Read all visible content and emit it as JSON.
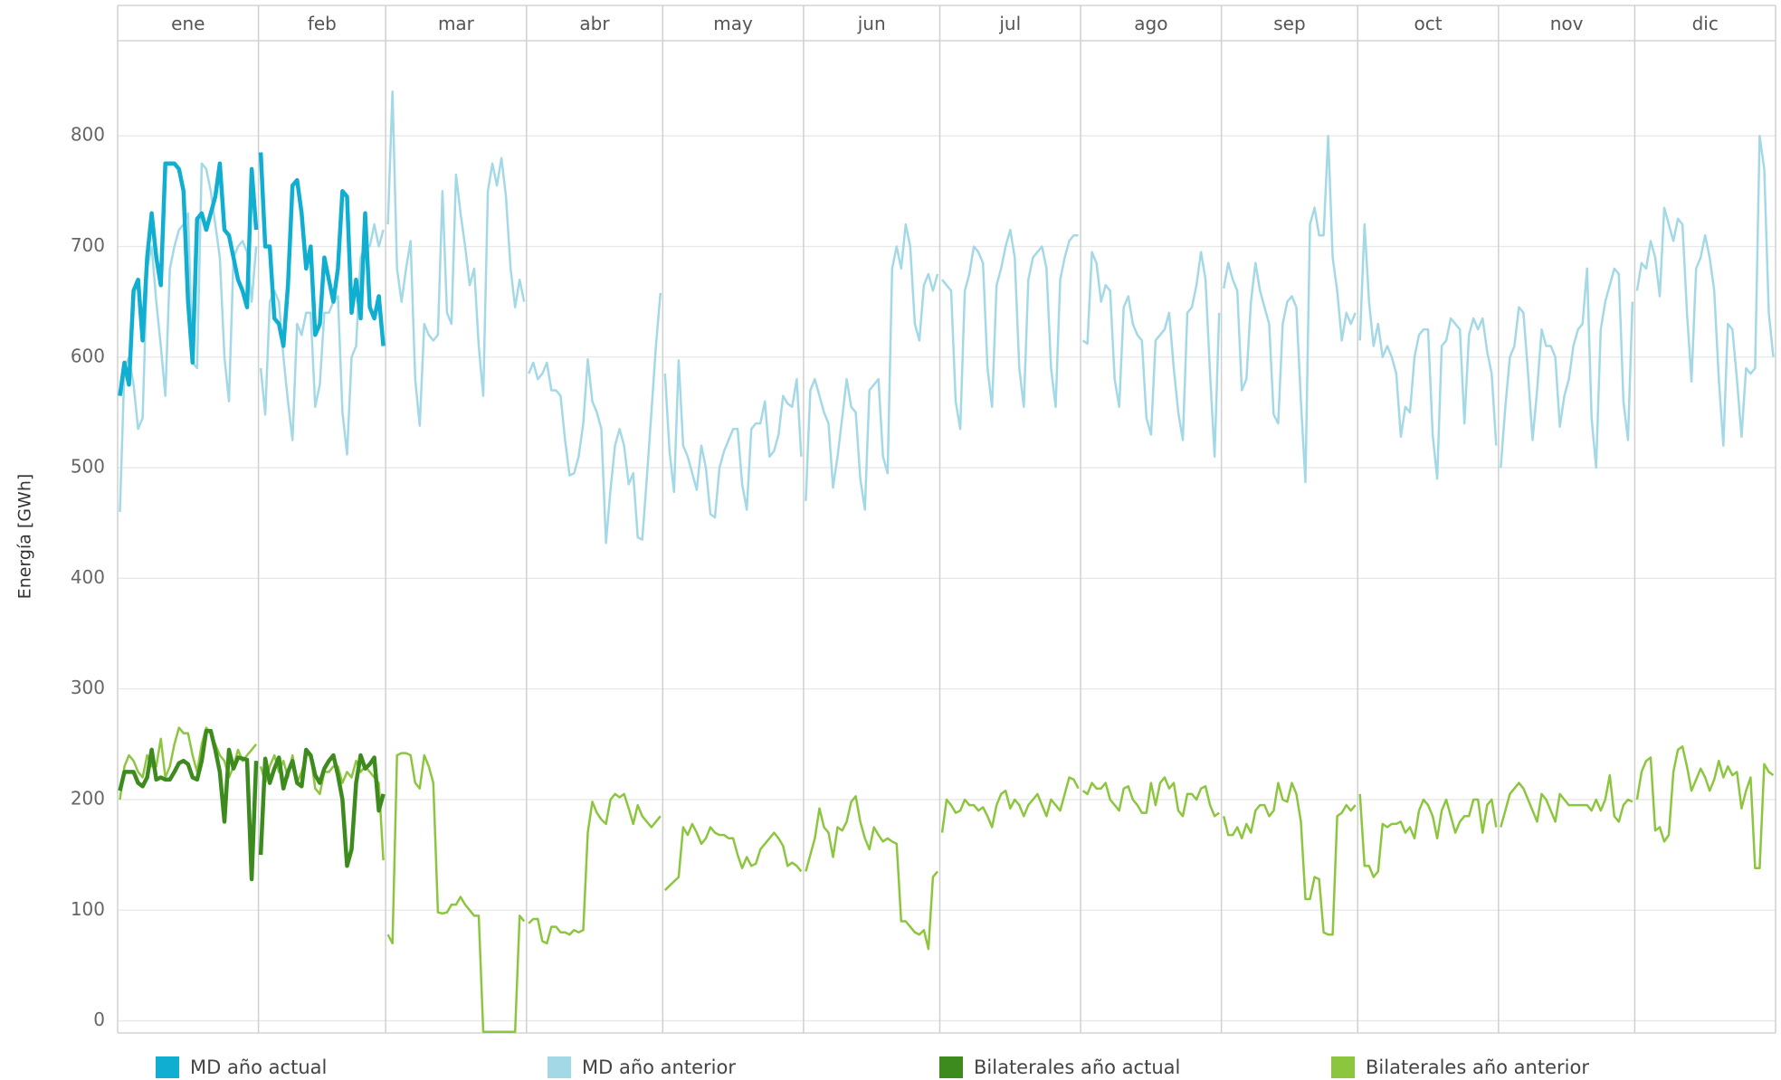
{
  "chart_data": {
    "type": "line",
    "y_label": "Energía [GWh]",
    "categories": [
      "ene",
      "feb",
      "mar",
      "abr",
      "may",
      "jun",
      "jul",
      "ago",
      "sep",
      "oct",
      "nov",
      "dic"
    ],
    "ylim": [
      -11,
      886
    ],
    "yticks": [
      0,
      100,
      200,
      300,
      400,
      500,
      600,
      700,
      800
    ],
    "grid": true,
    "legend": "bottom",
    "series": [
      {
        "name": "MD año actual",
        "color": "#10aed0",
        "width": 4.5,
        "values": [
          [
            565,
            595,
            575,
            660,
            670,
            615,
            690,
            730,
            690,
            665,
            775,
            775,
            775,
            770,
            750,
            650,
            595,
            725,
            730,
            715,
            730,
            745,
            775,
            715,
            710,
            690,
            670,
            660,
            645,
            770,
            715
          ],
          [
            785,
            700,
            700,
            635,
            630,
            610,
            665,
            755,
            760,
            730,
            680,
            700,
            620,
            630,
            690,
            670,
            650,
            680,
            750,
            745,
            640,
            670,
            635,
            730,
            645,
            635,
            655,
            610
          ],
          null,
          null,
          null,
          null,
          null,
          null,
          null,
          null,
          null,
          null
        ]
      },
      {
        "name": "MD año anterior",
        "color": "#a3d9e6",
        "width": 2.5,
        "values": [
          [
            460,
            590,
            600,
            575,
            535,
            545,
            680,
            700,
            650,
            610,
            565,
            680,
            700,
            715,
            720,
            730,
            595,
            590,
            775,
            770,
            750,
            720,
            690,
            600,
            560,
            690,
            700,
            705,
            695,
            650,
            700
          ],
          [
            590,
            548,
            650,
            660,
            650,
            600,
            560,
            525,
            630,
            620,
            640,
            640,
            555,
            575,
            640,
            640,
            650,
            655,
            550,
            512,
            600,
            610,
            690,
            700,
            700,
            720,
            700,
            715
          ],
          [
            720,
            840,
            680,
            650,
            680,
            705,
            580,
            538,
            630,
            620,
            615,
            620,
            750,
            640,
            630,
            765,
            730,
            700,
            665,
            680,
            610,
            565,
            750,
            775,
            755,
            780,
            745,
            680,
            645,
            670,
            650
          ],
          [
            585,
            595,
            580,
            585,
            595,
            570,
            570,
            565,
            525,
            493,
            495,
            510,
            540,
            598,
            560,
            550,
            535,
            432,
            480,
            520,
            535,
            520,
            485,
            495,
            437,
            435,
            490,
            550,
            610,
            658
          ],
          [
            585,
            515,
            478,
            597,
            520,
            510,
            495,
            480,
            520,
            500,
            458,
            455,
            500,
            515,
            525,
            535,
            535,
            485,
            462,
            535,
            540,
            540,
            560,
            510,
            515,
            530,
            565,
            558,
            555,
            580,
            510
          ],
          [
            470,
            570,
            580,
            565,
            550,
            540,
            482,
            510,
            545,
            580,
            555,
            550,
            490,
            462,
            570,
            575,
            580,
            510,
            495,
            680,
            700,
            680,
            720,
            700,
            630,
            615,
            665,
            675,
            660,
            675
          ],
          [
            670,
            665,
            660,
            560,
            535,
            660,
            675,
            700,
            695,
            685,
            590,
            555,
            665,
            680,
            700,
            715,
            690,
            590,
            555,
            670,
            690,
            695,
            700,
            680,
            590,
            555,
            670,
            690,
            705,
            710,
            710
          ],
          [
            615,
            612,
            695,
            685,
            650,
            665,
            660,
            580,
            555,
            645,
            655,
            630,
            620,
            615,
            545,
            530,
            615,
            620,
            625,
            640,
            590,
            550,
            525,
            640,
            645,
            665,
            695,
            670,
            585,
            510,
            640
          ],
          [
            662,
            685,
            670,
            660,
            570,
            580,
            650,
            685,
            660,
            645,
            630,
            548,
            540,
            630,
            650,
            655,
            645,
            560,
            487,
            720,
            735,
            710,
            710,
            800,
            690,
            660,
            615,
            640,
            630,
            640
          ],
          [
            615,
            720,
            650,
            610,
            630,
            600,
            610,
            600,
            585,
            528,
            555,
            550,
            600,
            620,
            625,
            625,
            530,
            490,
            610,
            615,
            635,
            630,
            625,
            540,
            620,
            635,
            625,
            635,
            605,
            585,
            520
          ],
          [
            500,
            555,
            600,
            610,
            645,
            640,
            585,
            525,
            570,
            625,
            610,
            610,
            600,
            537,
            565,
            580,
            610,
            625,
            630,
            680,
            545,
            500,
            625,
            650,
            665,
            680,
            675,
            560,
            525,
            650
          ],
          [
            660,
            685,
            680,
            705,
            690,
            655,
            735,
            720,
            705,
            725,
            720,
            640,
            578,
            680,
            690,
            710,
            690,
            660,
            580,
            520,
            630,
            625,
            580,
            528,
            590,
            585,
            590,
            800,
            770,
            640,
            600
          ]
        ]
      },
      {
        "name": "Bilaterales año actual",
        "color": "#3d8b1f",
        "width": 4.5,
        "values": [
          [
            208,
            225,
            225,
            225,
            215,
            212,
            220,
            245,
            218,
            220,
            218,
            218,
            225,
            233,
            235,
            232,
            220,
            218,
            235,
            262,
            262,
            245,
            225,
            180,
            245,
            228,
            238,
            237,
            236,
            128,
            235
          ],
          [
            150,
            237,
            215,
            228,
            238,
            210,
            225,
            235,
            215,
            212,
            245,
            240,
            222,
            215,
            228,
            235,
            240,
            222,
            200,
            140,
            155,
            215,
            240,
            228,
            232,
            238,
            190,
            205
          ],
          null,
          null,
          null,
          null,
          null,
          null,
          null,
          null,
          null,
          null
        ]
      },
      {
        "name": "Bilaterales año anterior",
        "color": "#8cc63f",
        "width": 2.5,
        "values": [
          [
            200,
            230,
            240,
            235,
            225,
            220,
            240,
            230,
            230,
            255,
            220,
            230,
            250,
            265,
            260,
            260,
            240,
            225,
            250,
            265,
            260,
            250,
            240,
            235,
            220,
            230,
            245,
            235,
            240,
            245,
            250
          ],
          [
            230,
            215,
            230,
            240,
            225,
            235,
            220,
            240,
            215,
            225,
            240,
            240,
            210,
            205,
            225,
            225,
            230,
            230,
            215,
            225,
            220,
            235,
            225,
            230,
            225,
            220,
            215,
            145
          ],
          [
            78,
            70,
            240,
            242,
            242,
            240,
            215,
            210,
            240,
            230,
            215,
            98,
            97,
            98,
            105,
            105,
            112,
            105,
            100,
            95,
            95,
            -10,
            -10,
            -10,
            -10,
            -10,
            -10,
            -10,
            -10,
            95,
            90
          ],
          [
            88,
            92,
            92,
            72,
            70,
            85,
            85,
            80,
            80,
            78,
            82,
            80,
            82,
            170,
            198,
            188,
            182,
            178,
            200,
            205,
            202,
            205,
            192,
            178,
            195,
            185,
            180,
            175,
            180,
            185
          ],
          [
            118,
            122,
            126,
            130,
            175,
            168,
            178,
            170,
            160,
            165,
            175,
            170,
            168,
            168,
            165,
            165,
            150,
            138,
            148,
            140,
            142,
            155,
            160,
            165,
            170,
            165,
            158,
            140,
            143,
            140,
            135
          ],
          [
            135,
            150,
            165,
            192,
            175,
            170,
            148,
            175,
            172,
            180,
            198,
            203,
            180,
            165,
            155,
            175,
            168,
            162,
            165,
            162,
            160,
            90,
            90,
            85,
            80,
            78,
            82,
            65,
            130,
            135
          ],
          [
            170,
            200,
            195,
            188,
            190,
            200,
            195,
            195,
            190,
            193,
            185,
            175,
            195,
            205,
            208,
            192,
            200,
            195,
            185,
            195,
            200,
            205,
            195,
            185,
            200,
            195,
            190,
            205,
            220,
            218,
            210
          ],
          [
            208,
            205,
            215,
            210,
            210,
            215,
            200,
            195,
            190,
            210,
            212,
            200,
            195,
            188,
            188,
            215,
            195,
            215,
            220,
            210,
            215,
            190,
            185,
            205,
            205,
            200,
            210,
            212,
            195,
            185,
            188
          ],
          [
            185,
            168,
            168,
            175,
            165,
            178,
            170,
            190,
            195,
            195,
            185,
            190,
            215,
            200,
            198,
            215,
            205,
            180,
            110,
            110,
            130,
            128,
            80,
            78,
            78,
            185,
            188,
            195,
            190,
            195
          ],
          [
            205,
            140,
            140,
            130,
            135,
            178,
            175,
            178,
            178,
            180,
            170,
            175,
            165,
            190,
            200,
            195,
            185,
            165,
            190,
            200,
            185,
            170,
            180,
            185,
            185,
            200,
            200,
            170,
            195,
            200,
            175
          ],
          [
            175,
            190,
            205,
            210,
            215,
            210,
            200,
            190,
            180,
            205,
            200,
            190,
            180,
            205,
            200,
            195,
            195,
            195,
            195,
            195,
            190,
            200,
            190,
            200,
            222,
            185,
            180,
            195,
            200,
            198
          ],
          [
            200,
            225,
            235,
            238,
            172,
            175,
            162,
            168,
            225,
            245,
            248,
            230,
            208,
            218,
            228,
            220,
            208,
            218,
            235,
            220,
            230,
            222,
            225,
            192,
            208,
            220,
            138,
            138,
            232,
            225,
            222
          ]
        ]
      }
    ]
  }
}
